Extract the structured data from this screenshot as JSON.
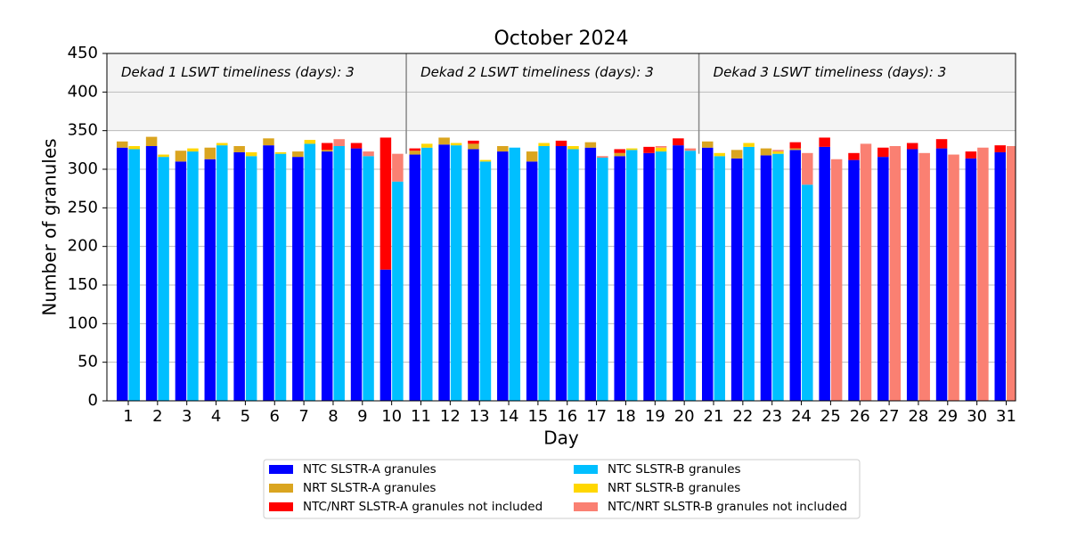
{
  "chart_data": {
    "type": "grouped_stacked_bar",
    "title": "October 2024",
    "x_label": "Day",
    "y_label": "Number of granules",
    "categories": [
      1,
      2,
      3,
      4,
      5,
      6,
      7,
      8,
      9,
      10,
      11,
      12,
      13,
      14,
      15,
      16,
      17,
      18,
      19,
      20,
      21,
      22,
      23,
      24,
      25,
      26,
      27,
      28,
      29,
      30,
      31
    ],
    "series": [
      {
        "name": "NTC SLSTR-A granules",
        "color": "#0000ff",
        "stack": "A",
        "values": [
          328,
          330,
          310,
          313,
          322,
          331,
          316,
          323,
          327,
          170,
          319,
          332,
          326,
          323,
          310,
          330,
          328,
          317,
          321,
          331,
          328,
          314,
          318,
          325,
          329,
          312,
          316,
          326,
          327,
          314,
          322
        ]
      },
      {
        "name": "NRT SLSTR-A granules",
        "color": "#daa520",
        "stack": "A",
        "values": [
          8,
          12,
          14,
          15,
          8,
          9,
          7,
          2,
          0,
          0,
          5,
          9,
          7,
          7,
          13,
          0,
          7,
          4,
          0,
          0,
          8,
          11,
          9,
          2,
          0,
          0,
          0,
          0,
          0,
          0,
          0
        ]
      },
      {
        "name": "NTC/NRT SLSTR-A granules not included",
        "color": "#ff0000",
        "stack": "A",
        "values": [
          0,
          0,
          0,
          0,
          0,
          0,
          0,
          9,
          7,
          171,
          3,
          0,
          4,
          0,
          0,
          7,
          0,
          5,
          8,
          9,
          0,
          0,
          0,
          8,
          12,
          9,
          12,
          8,
          12,
          9,
          9
        ]
      },
      {
        "name": "NTC SLSTR-B granules",
        "color": "#00bfff",
        "stack": "B",
        "values": [
          326,
          316,
          323,
          331,
          317,
          320,
          333,
          330,
          317,
          284,
          328,
          331,
          310,
          328,
          330,
          326,
          315,
          325,
          323,
          324,
          317,
          329,
          320,
          280,
          0,
          0,
          0,
          0,
          0,
          0,
          0
        ]
      },
      {
        "name": "NRT SLSTR-B granules",
        "color": "#ffd700",
        "stack": "B",
        "values": [
          4,
          3,
          4,
          3,
          5,
          2,
          5,
          0,
          0,
          0,
          5,
          3,
          2,
          0,
          4,
          4,
          0,
          2,
          5,
          0,
          4,
          5,
          3,
          0,
          0,
          0,
          0,
          0,
          0,
          0,
          0
        ]
      },
      {
        "name": "NTC/NRT SLSTR-B granules not included",
        "color": "#fa8072",
        "stack": "B",
        "values": [
          0,
          0,
          0,
          0,
          0,
          0,
          0,
          9,
          6,
          36,
          0,
          0,
          0,
          0,
          0,
          0,
          2,
          0,
          2,
          3,
          0,
          0,
          2,
          41,
          313,
          333,
          330,
          321,
          319,
          328,
          330
        ]
      }
    ],
    "ylim": [
      0,
      450
    ],
    "yticks": [
      0,
      50,
      100,
      150,
      200,
      250,
      300,
      350,
      400,
      450
    ],
    "grid": true,
    "shaded_band": [
      350,
      450
    ],
    "separators": [
      10.5,
      20.5
    ],
    "annotations": [
      "Dekad 1 LSWT timeliness (days): 3",
      "Dekad 2 LSWT timeliness (days): 3",
      "Dekad 3 LSWT timeliness (days): 3"
    ],
    "legend": "bottom"
  }
}
